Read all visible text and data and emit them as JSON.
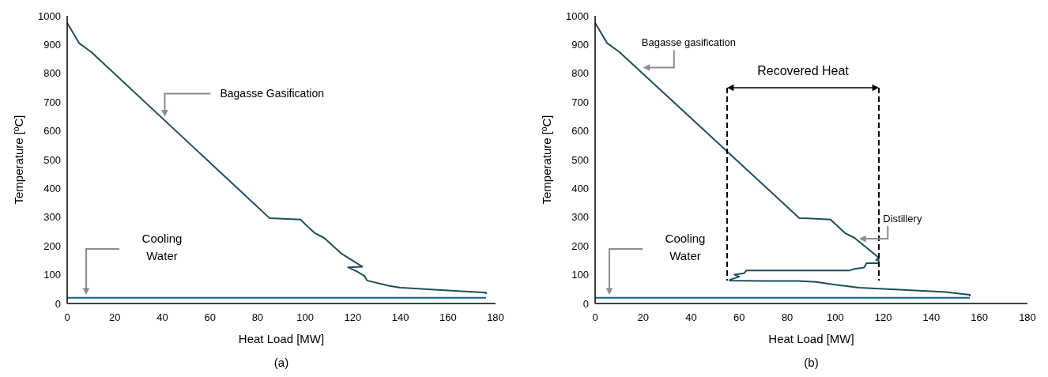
{
  "chart_data": [
    {
      "type": "line",
      "xlabel": "Heat Load [MW]",
      "ylabel": "Temperature [ºC]",
      "xlim": [
        0,
        180
      ],
      "xticks": [
        0,
        20,
        40,
        60,
        80,
        100,
        120,
        140,
        160,
        180
      ],
      "ylim": [
        0,
        1000
      ],
      "yticks": [
        0,
        100,
        200,
        300,
        400,
        500,
        600,
        700,
        800,
        900,
        1000
      ],
      "series": [
        {
          "color": "#1d4f5c",
          "x": [
            0,
            5,
            10,
            85,
            98,
            102,
            104,
            108,
            115,
            124,
            118,
            122,
            125,
            126,
            135,
            140,
            160,
            176,
            176
          ],
          "values": [
            975,
            905,
            875,
            297,
            292,
            260,
            245,
            228,
            175,
            128,
            126,
            110,
            95,
            80,
            62,
            55,
            45,
            38,
            33
          ]
        },
        {
          "color": "#17607a",
          "x": [
            0,
            176
          ],
          "values": [
            20,
            20
          ]
        }
      ],
      "annotations": [
        {
          "text": "Bagasse Gasification",
          "x": 41,
          "y": 650
        },
        "Cooling Water",
        "(a)"
      ]
    },
    {
      "type": "line",
      "xlabel": "Heat Load [MW]",
      "ylabel": "Temperature [ºC]",
      "xlim": [
        0,
        180
      ],
      "xticks": [
        0,
        20,
        40,
        60,
        80,
        100,
        120,
        140,
        160,
        180
      ],
      "ylim": [
        0,
        1000
      ],
      "yticks": [
        0,
        100,
        200,
        300,
        400,
        500,
        600,
        700,
        800,
        900,
        1000
      ],
      "series": [
        {
          "color": "#1d4f5c",
          "x": [
            0,
            5,
            10,
            85,
            98,
            104,
            108,
            118,
            117,
            118,
            118,
            113,
            112,
            108,
            106,
            63,
            62,
            58,
            60,
            56,
            56,
            70,
            85,
            92,
            100,
            110,
            130,
            146,
            156,
            156
          ],
          "values": [
            975,
            905,
            875,
            297,
            292,
            245,
            228,
            160,
            150,
            155,
            140,
            140,
            125,
            120,
            115,
            115,
            105,
            100,
            93,
            82,
            80,
            78,
            78,
            75,
            65,
            55,
            47,
            40,
            30,
            25
          ]
        },
        {
          "color": "#17607a",
          "x": [
            0,
            156
          ],
          "values": [
            20,
            20
          ]
        }
      ],
      "annotations": [
        {
          "text": "Bagasse gasification",
          "x": 20,
          "y": 820
        },
        "Recovered Heat",
        {
          "text": "Distillery",
          "x": 110,
          "y": 225
        },
        "Cooling Water",
        "(b)"
      ]
    }
  ]
}
